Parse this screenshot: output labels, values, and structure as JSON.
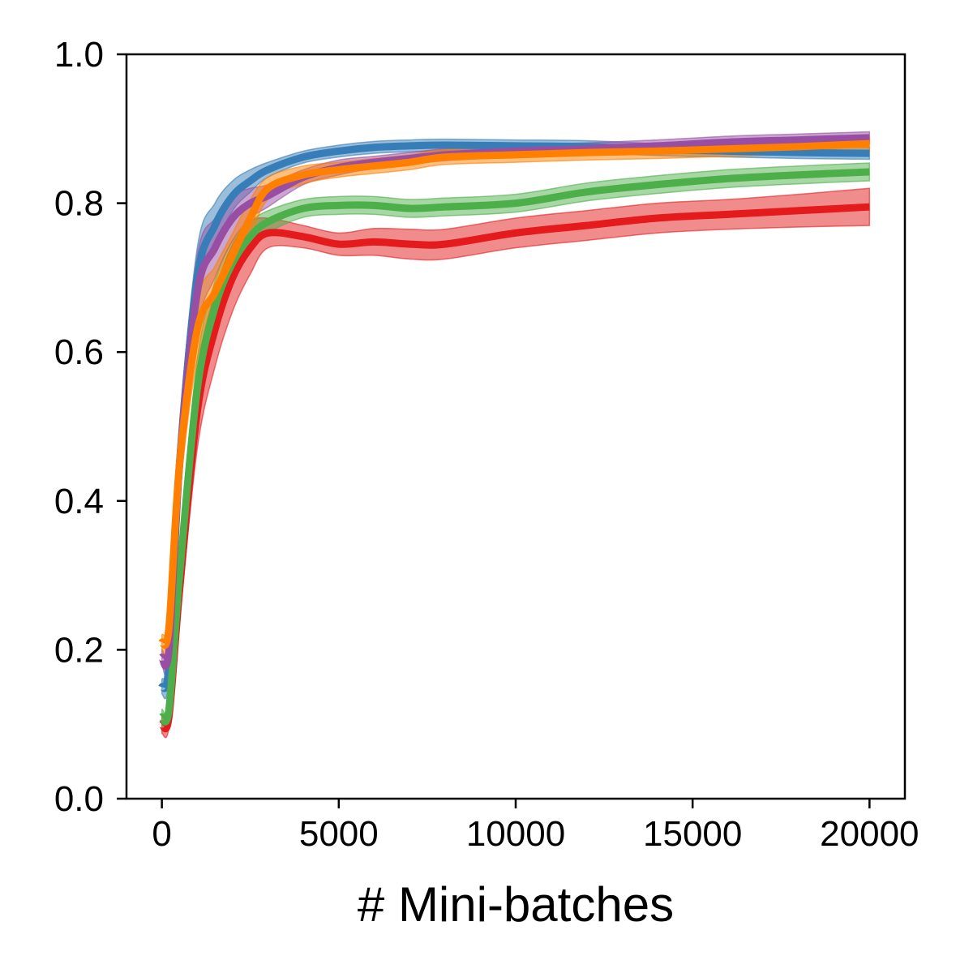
{
  "chart_data": {
    "type": "line",
    "title": "",
    "xlabel": "# Mini-batches",
    "ylabel": "",
    "xlim": [
      -1000,
      21000
    ],
    "ylim": [
      0.0,
      1.0
    ],
    "xticks": [
      0,
      5000,
      10000,
      15000,
      20000
    ],
    "xtick_labels": [
      "0",
      "5000",
      "10000",
      "15000",
      "20000"
    ],
    "yticks": [
      0.0,
      0.2,
      0.4,
      0.6,
      0.8,
      1.0
    ],
    "ytick_labels": [
      "0.0",
      "0.2",
      "0.4",
      "0.6",
      "0.8",
      "1.0"
    ],
    "grid": false,
    "legend": "none",
    "bands_shaded": true,
    "series": [
      {
        "color": "#e41a1c",
        "x": [
          0,
          200,
          500,
          1000,
          1500,
          2000,
          2500,
          3000,
          4000,
          5000,
          6000,
          7000,
          8000,
          10000,
          12000,
          14000,
          16000,
          18000,
          20000
        ],
        "y": [
          0.1,
          0.11,
          0.28,
          0.52,
          0.63,
          0.7,
          0.74,
          0.76,
          0.755,
          0.745,
          0.748,
          0.745,
          0.745,
          0.76,
          0.77,
          0.78,
          0.785,
          0.79,
          0.795
        ],
        "band": [
          0.012,
          0.015,
          0.04,
          0.05,
          0.05,
          0.045,
          0.035,
          0.02,
          0.015,
          0.015,
          0.018,
          0.02,
          0.02,
          0.02,
          0.02,
          0.02,
          0.02,
          0.022,
          0.025
        ]
      },
      {
        "color": "#377eb8",
        "x": [
          0,
          200,
          500,
          1000,
          1500,
          2000,
          2500,
          3000,
          4000,
          5000,
          6000,
          7000,
          8000,
          10000,
          12000,
          14000,
          16000,
          18000,
          20000
        ],
        "y": [
          0.15,
          0.18,
          0.45,
          0.7,
          0.77,
          0.81,
          0.83,
          0.845,
          0.862,
          0.87,
          0.875,
          0.877,
          0.878,
          0.877,
          0.876,
          0.872,
          0.87,
          0.868,
          0.867
        ],
        "band": [
          0.01,
          0.02,
          0.04,
          0.04,
          0.03,
          0.02,
          0.015,
          0.01,
          0.008,
          0.008,
          0.008,
          0.008,
          0.008,
          0.008,
          0.008,
          0.008,
          0.008,
          0.008,
          0.008
        ]
      },
      {
        "color": "#4daf4a",
        "x": [
          0,
          200,
          500,
          1000,
          1500,
          2000,
          2500,
          3000,
          4000,
          5000,
          6000,
          7000,
          8000,
          10000,
          12000,
          14000,
          16000,
          18000,
          20000
        ],
        "y": [
          0.11,
          0.12,
          0.3,
          0.55,
          0.66,
          0.72,
          0.755,
          0.775,
          0.793,
          0.797,
          0.797,
          0.793,
          0.795,
          0.8,
          0.815,
          0.825,
          0.833,
          0.838,
          0.842
        ],
        "band": [
          0.01,
          0.015,
          0.04,
          0.04,
          0.035,
          0.03,
          0.02,
          0.015,
          0.012,
          0.012,
          0.012,
          0.012,
          0.012,
          0.012,
          0.012,
          0.012,
          0.012,
          0.012,
          0.012
        ]
      },
      {
        "color": "#984ea3",
        "x": [
          0,
          200,
          500,
          1000,
          1500,
          2000,
          2500,
          3000,
          4000,
          5000,
          6000,
          7000,
          8000,
          10000,
          12000,
          14000,
          16000,
          18000,
          20000
        ],
        "y": [
          0.19,
          0.2,
          0.45,
          0.68,
          0.74,
          0.78,
          0.8,
          0.81,
          0.835,
          0.848,
          0.855,
          0.86,
          0.865,
          0.87,
          0.873,
          0.877,
          0.882,
          0.885,
          0.888
        ],
        "band": [
          0.01,
          0.02,
          0.05,
          0.05,
          0.04,
          0.03,
          0.02,
          0.015,
          0.01,
          0.01,
          0.008,
          0.008,
          0.008,
          0.008,
          0.008,
          0.008,
          0.008,
          0.008,
          0.008
        ]
      },
      {
        "color": "#ff7f00",
        "x": [
          0,
          200,
          500,
          1000,
          1500,
          2000,
          2500,
          3000,
          4000,
          5000,
          6000,
          7000,
          8000,
          10000,
          12000,
          14000,
          16000,
          18000,
          20000
        ],
        "y": [
          0.21,
          0.23,
          0.45,
          0.63,
          0.68,
          0.73,
          0.78,
          0.82,
          0.838,
          0.845,
          0.85,
          0.855,
          0.862,
          0.865,
          0.868,
          0.87,
          0.873,
          0.876,
          0.88
        ],
        "band": [
          0.01,
          0.02,
          0.04,
          0.04,
          0.035,
          0.03,
          0.025,
          0.015,
          0.012,
          0.01,
          0.01,
          0.01,
          0.01,
          0.01,
          0.01,
          0.01,
          0.01,
          0.01,
          0.01
        ]
      }
    ]
  }
}
